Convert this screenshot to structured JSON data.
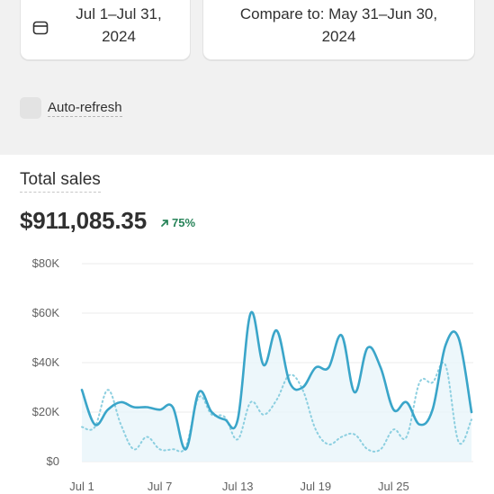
{
  "date_range": {
    "label": "Jul 1–Jul 31, 2024",
    "icon": "calendar-icon"
  },
  "compare": {
    "label": "Compare to: May 31–Jun 30, 2024"
  },
  "auto_refresh": {
    "label": "Auto-refresh",
    "checked": false
  },
  "total_sales": {
    "title": "Total sales",
    "value": "$911,085.35",
    "change": "75%",
    "change_color": "#29845a",
    "change_icon": "arrow-up-right-icon"
  },
  "colors": {
    "current": "#3aa5c9",
    "comparison": "#8ccfe0",
    "area": "#e8f5fa",
    "grid": "#ebebeb"
  },
  "chart_data": {
    "type": "line",
    "title": "Total sales",
    "xlabel": "",
    "ylabel": "",
    "ylim": [
      0,
      80000
    ],
    "y_ticks": [
      "$0",
      "$20K",
      "$40K",
      "$60K",
      "$80K"
    ],
    "x_ticks": [
      "Jul 1",
      "Jul 7",
      "Jul 13",
      "Jul 19",
      "Jul 25"
    ],
    "grid": true,
    "x": [
      1,
      2,
      3,
      4,
      5,
      6,
      7,
      8,
      9,
      10,
      11,
      12,
      13,
      14,
      15,
      16,
      17,
      18,
      19,
      20,
      21,
      22,
      23,
      24,
      25,
      26,
      27,
      28,
      29,
      30,
      31
    ],
    "series": [
      {
        "name": "Jul 1–Jul 31, 2024",
        "style": "solid",
        "values": [
          29000,
          15000,
          21000,
          24000,
          22000,
          22000,
          21000,
          22000,
          5000,
          28000,
          20000,
          17000,
          17000,
          60000,
          39000,
          53000,
          32000,
          30000,
          38000,
          38000,
          51000,
          28000,
          46000,
          38000,
          21000,
          24000,
          15000,
          21000,
          47000,
          50000,
          20000
        ]
      },
      {
        "name": "May 31–Jun 30, 2024",
        "style": "dotted",
        "values": [
          14000,
          14000,
          29000,
          15000,
          5000,
          10000,
          5000,
          5000,
          6000,
          26000,
          19000,
          18000,
          9000,
          24000,
          19000,
          25000,
          35000,
          29000,
          13000,
          7000,
          10000,
          11000,
          5000,
          5000,
          13000,
          10000,
          32000,
          32000,
          39000,
          8000,
          17000
        ]
      }
    ]
  }
}
